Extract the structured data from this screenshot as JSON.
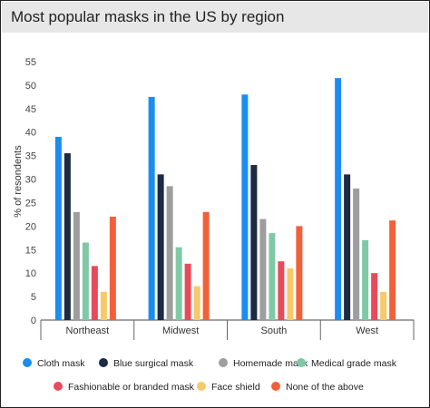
{
  "chart_data": {
    "type": "bar",
    "title": "Most popular masks in the US by region",
    "ylabel": "% of resondents",
    "xlabel": "",
    "ylim": [
      0,
      55
    ],
    "yticks": [
      0,
      5,
      10,
      15,
      20,
      25,
      30,
      35,
      40,
      45,
      50,
      55
    ],
    "grid": false,
    "legend_position": "bottom",
    "categories": [
      "Northeast",
      "Midwest",
      "South",
      "West"
    ],
    "series": [
      {
        "name": "Cloth mask",
        "color": "#1a8df0",
        "values": [
          39,
          47.5,
          48,
          51.5
        ]
      },
      {
        "name": "Blue surgical mask",
        "color": "#1c2a44",
        "values": [
          35.5,
          31,
          33,
          31
        ]
      },
      {
        "name": "Homemade mask",
        "color": "#9e9e9e",
        "values": [
          23,
          28.5,
          21.5,
          28
        ]
      },
      {
        "name": "Medical grade mask",
        "color": "#7fc9a6",
        "values": [
          16.5,
          15.5,
          18.5,
          17
        ]
      },
      {
        "name": "Fashionable or branded mask",
        "color": "#e84a5a",
        "values": [
          11.5,
          12,
          12.5,
          10
        ]
      },
      {
        "name": "Face shield",
        "color": "#f7c96a",
        "values": [
          6,
          7.2,
          11,
          6
        ]
      },
      {
        "name": "None of the above",
        "color": "#f2603a",
        "values": [
          22,
          23,
          20,
          21.2
        ]
      }
    ]
  }
}
